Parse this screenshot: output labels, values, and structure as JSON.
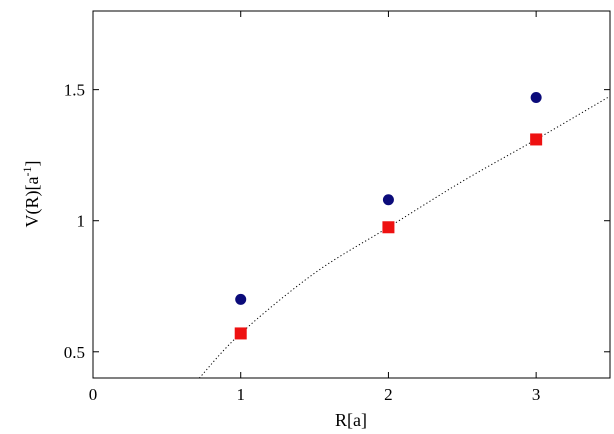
{
  "chart_data": {
    "type": "scatter",
    "xlabel": "R[a]",
    "ylabel_main": "V(R)[a",
    "ylabel_sup": "-1",
    "ylabel_close": "]",
    "xlim": [
      0,
      3.5
    ],
    "ylim": [
      0.4,
      1.8
    ],
    "xticks": [
      0,
      1,
      2,
      3
    ],
    "yticks": [
      0.5,
      1,
      1.5
    ],
    "xtick_labels": [
      "0",
      "1",
      "2",
      "3"
    ],
    "ytick_labels": [
      "0.5",
      "1",
      "1.5"
    ],
    "grid": false,
    "series": [
      {
        "marker": "circle",
        "color": "#0b0b7a",
        "points": [
          {
            "x": 1,
            "y": 0.7
          },
          {
            "x": 2,
            "y": 1.08
          },
          {
            "x": 3,
            "y": 1.47
          }
        ]
      },
      {
        "marker": "square",
        "color": "#ee1111",
        "points": [
          {
            "x": 1,
            "y": 0.57
          },
          {
            "x": 2,
            "y": 0.975
          },
          {
            "x": 3,
            "y": 1.31
          }
        ]
      }
    ],
    "curve": {
      "style": "dotted",
      "color": "#000000",
      "points": [
        {
          "x": 0.72,
          "y": 0.4
        },
        {
          "x": 1.0,
          "y": 0.57
        },
        {
          "x": 1.5,
          "y": 0.8
        },
        {
          "x": 2.0,
          "y": 0.975
        },
        {
          "x": 2.5,
          "y": 1.15
        },
        {
          "x": 3.0,
          "y": 1.31
        },
        {
          "x": 3.5,
          "y": 1.475
        }
      ]
    }
  }
}
